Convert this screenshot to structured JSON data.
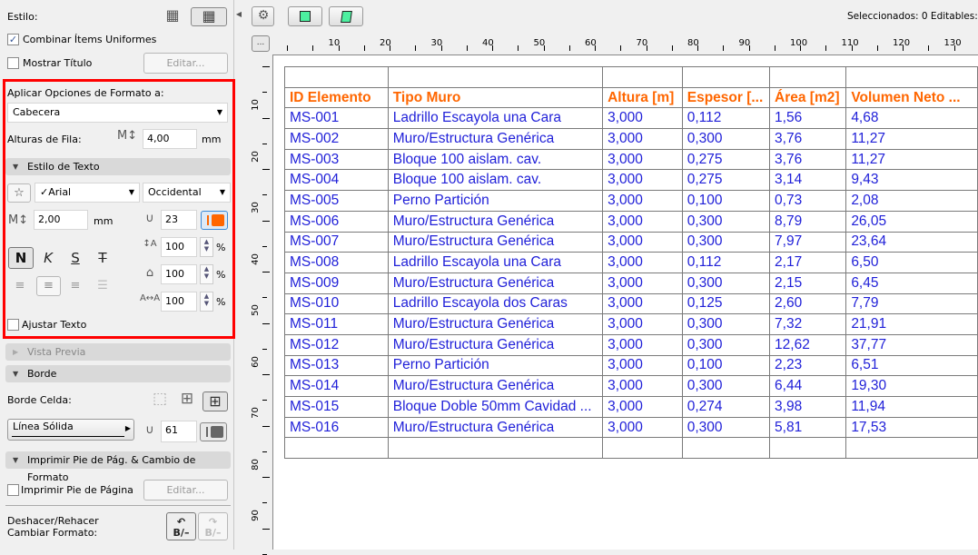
{
  "panel": {
    "estilo_label": "Estilo:",
    "combinar_label": "Combinar Ítems Uniformes",
    "combinar_checked": true,
    "mostrar_titulo_label": "Mostrar Título",
    "mostrar_titulo_checked": false,
    "editar_label": "Editar...",
    "aplicar_label": "Aplicar Opciones de Formato a:",
    "aplicar_value": "Cabecera",
    "alturas_label": "Alturas de Fila:",
    "alturas_value": "4,00",
    "unit_mm": "mm",
    "estilo_texto_header": "Estilo de Texto",
    "font_value": "✓Arial",
    "script_value": "Occidental",
    "text_size_value": "2,00",
    "pen_value": "23",
    "pen_color": "#ff6600",
    "style_bold": "N",
    "style_italic": "K",
    "style_underline": "S",
    "style_strike": "T",
    "spacing_value": "100",
    "width_value": "100",
    "char_spacing_value": "100",
    "percent": "%",
    "ajustar_label": "Ajustar Texto",
    "vista_previa_header": "Vista Previa",
    "borde_header": "Borde",
    "borde_celda_label": "Borde Celda:",
    "line_type_value": "Línea Sólida",
    "border_pen_value": "61",
    "border_pen_color": "#666666",
    "imprimir_header": "Imprimir Pie de Pág. & Cambio de Formato",
    "imprimir_pie_label": "Imprimir Pie de Página",
    "imprimir_pie_checked": false,
    "editar2_label": "Editar...",
    "deshacer_label_1": "Deshacer/Rehacer",
    "deshacer_label_2": "Cambiar Formato:",
    "undo_text": "B/–",
    "redo_text": "B/–"
  },
  "toolbar": {
    "status": "Seleccionados: 0  Editables:",
    "ruler_button": "..."
  },
  "ruler": {
    "h_labels": [
      "10",
      "20",
      "30",
      "40",
      "50",
      "60",
      "70",
      "80",
      "90",
      "100",
      "110",
      "120",
      "130"
    ],
    "v_labels": [
      "10",
      "20",
      "30",
      "40",
      "50",
      "60",
      "70",
      "80",
      "90"
    ]
  },
  "table": {
    "headers": [
      "ID Elemento",
      "Tipo Muro",
      "Altura [m]",
      "Espesor [...",
      "Área [m2]",
      "Volumen Neto ..."
    ],
    "rows": [
      [
        "MS-001",
        "Ladrillo Escayola una Cara",
        "3,000",
        "0,112",
        "1,56",
        "4,68"
      ],
      [
        "MS-002",
        "Muro/Estructura Genérica",
        "3,000",
        "0,300",
        "3,76",
        "11,27"
      ],
      [
        "MS-003",
        "Bloque 100 aislam. cav.",
        "3,000",
        "0,275",
        "3,76",
        "11,27"
      ],
      [
        "MS-004",
        "Bloque 100 aislam. cav.",
        "3,000",
        "0,275",
        "3,14",
        "9,43"
      ],
      [
        "MS-005",
        "Perno Partición",
        "3,000",
        "0,100",
        "0,73",
        "2,08"
      ],
      [
        "MS-006",
        "Muro/Estructura Genérica",
        "3,000",
        "0,300",
        "8,79",
        "26,05"
      ],
      [
        "MS-007",
        "Muro/Estructura Genérica",
        "3,000",
        "0,300",
        "7,97",
        "23,64"
      ],
      [
        "MS-008",
        "Ladrillo Escayola una Cara",
        "3,000",
        "0,112",
        "2,17",
        "6,50"
      ],
      [
        "MS-009",
        "Muro/Estructura Genérica",
        "3,000",
        "0,300",
        "2,15",
        "6,45"
      ],
      [
        "MS-010",
        "Ladrillo Escayola dos Caras",
        "3,000",
        "0,125",
        "2,60",
        "7,79"
      ],
      [
        "MS-011",
        "Muro/Estructura Genérica",
        "3,000",
        "0,300",
        "7,32",
        "21,91"
      ],
      [
        "MS-012",
        "Muro/Estructura Genérica",
        "3,000",
        "0,300",
        "12,62",
        "37,77"
      ],
      [
        "MS-013",
        "Perno Partición",
        "3,000",
        "0,100",
        "2,23",
        "6,51"
      ],
      [
        "MS-014",
        "Muro/Estructura Genérica",
        "3,000",
        "0,300",
        "6,44",
        "19,30"
      ],
      [
        "MS-015",
        "Bloque Doble 50mm Cavidad ...",
        "3,000",
        "0,274",
        "3,98",
        "11,94"
      ],
      [
        "MS-016",
        "Muro/Estructura Genérica",
        "3,000",
        "0,300",
        "5,81",
        "17,53"
      ]
    ],
    "header_color": "#ff6600",
    "body_color": "#1f1fd8"
  }
}
